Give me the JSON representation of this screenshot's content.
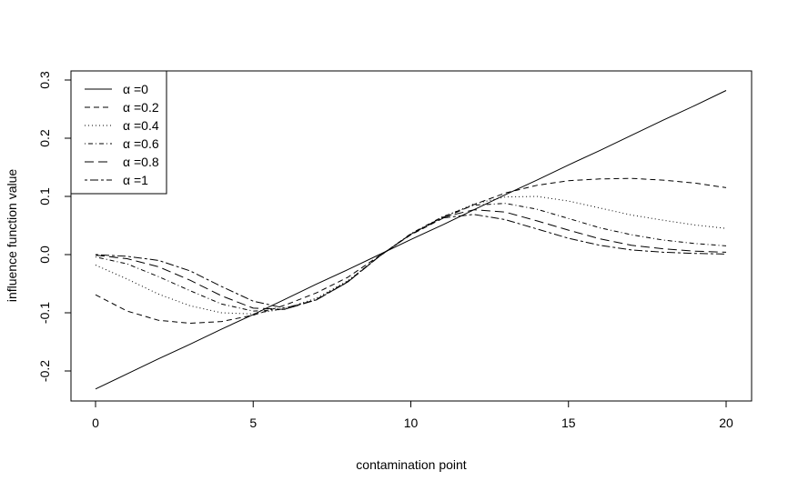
{
  "chart_data": {
    "type": "line",
    "xlabel": "contamination point",
    "ylabel": "influence function value",
    "xlim": [
      0,
      20
    ],
    "ylim": [
      -0.25,
      0.3
    ],
    "x_ticks": [
      0,
      5,
      10,
      15,
      20
    ],
    "y_ticks": [
      -0.2,
      -0.1,
      0.0,
      0.1,
      0.2,
      0.3
    ],
    "x_tick_labels": [
      "0",
      "5",
      "10",
      "15",
      "20"
    ],
    "y_tick_labels": [
      "-0.2",
      "-0.1",
      "0.0",
      "0.1",
      "0.2",
      "0.3"
    ],
    "grid": false,
    "legend_position": "top-left",
    "x": [
      0,
      1,
      2,
      3,
      4,
      5,
      6,
      7,
      8,
      9,
      10,
      11,
      12,
      13,
      14,
      15,
      16,
      17,
      18,
      19,
      20
    ],
    "series": [
      {
        "name": "α =0",
        "dash": "solid",
        "values": [
          -0.231,
          -0.205,
          -0.179,
          -0.154,
          -0.128,
          -0.103,
          -0.077,
          -0.051,
          -0.026,
          0.0,
          0.026,
          0.051,
          0.077,
          0.103,
          0.128,
          0.154,
          0.179,
          0.205,
          0.231,
          0.256,
          0.282
        ]
      },
      {
        "name": "α =0.2",
        "dash": "dashed",
        "values": [
          -0.069,
          -0.097,
          -0.113,
          -0.118,
          -0.115,
          -0.104,
          -0.087,
          -0.066,
          -0.039,
          -0.002,
          0.034,
          0.062,
          0.086,
          0.106,
          0.119,
          0.127,
          0.13,
          0.131,
          0.128,
          0.123,
          0.115
        ]
      },
      {
        "name": "α =0.4",
        "dash": "dotted",
        "values": [
          -0.018,
          -0.042,
          -0.068,
          -0.088,
          -0.1,
          -0.102,
          -0.093,
          -0.075,
          -0.045,
          -0.003,
          0.035,
          0.064,
          0.087,
          0.099,
          0.1,
          0.092,
          0.08,
          0.068,
          0.059,
          0.051,
          0.045
        ]
      },
      {
        "name": "α =0.6",
        "dash": "dotdash",
        "values": [
          -0.004,
          -0.016,
          -0.038,
          -0.062,
          -0.085,
          -0.097,
          -0.094,
          -0.077,
          -0.046,
          -0.003,
          0.036,
          0.065,
          0.085,
          0.088,
          0.078,
          0.062,
          0.046,
          0.034,
          0.025,
          0.019,
          0.015
        ]
      },
      {
        "name": "α =0.8",
        "dash": "longdash",
        "values": [
          -0.001,
          -0.007,
          -0.021,
          -0.044,
          -0.071,
          -0.092,
          -0.094,
          -0.078,
          -0.047,
          -0.003,
          0.035,
          0.064,
          0.077,
          0.073,
          0.058,
          0.042,
          0.027,
          0.016,
          0.01,
          0.006,
          0.004
        ]
      },
      {
        "name": "α =1",
        "dash": "twodash",
        "values": [
          0.0,
          -0.003,
          -0.01,
          -0.028,
          -0.055,
          -0.08,
          -0.092,
          -0.078,
          -0.047,
          -0.003,
          0.035,
          0.063,
          0.069,
          0.06,
          0.044,
          0.028,
          0.016,
          0.008,
          0.004,
          0.002,
          0.001
        ]
      }
    ]
  }
}
